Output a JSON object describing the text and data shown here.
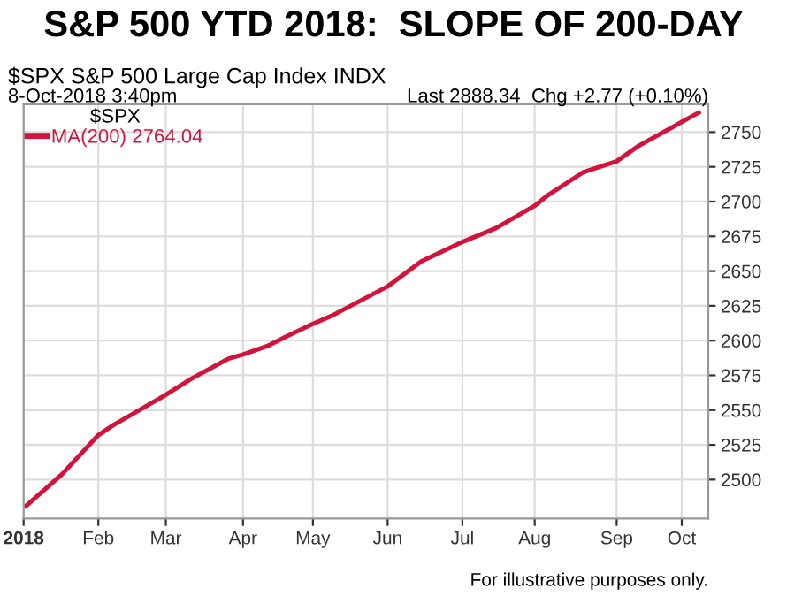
{
  "chart_data": {
    "type": "line",
    "title": "S&P 500 YTD 2018:  SLOPE OF 200-DAY",
    "subtitle": "$SPX S&P 500 Large Cap Index INDX",
    "annotations": [
      "8-Oct-2018 3:40pm",
      "Last 2888.34  Chg +2.77 (+0.10%)",
      "For illustrative purposes only."
    ],
    "legend_title": "$SPX",
    "x": [
      "2018-01-02",
      "2018-01-17",
      "2018-02-01",
      "2018-02-07",
      "2018-02-20",
      "2018-03-01",
      "2018-03-12",
      "2018-03-27",
      "2018-04-02",
      "2018-04-12",
      "2018-04-20",
      "2018-05-01",
      "2018-05-09",
      "2018-06-01",
      "2018-06-15",
      "2018-07-02",
      "2018-07-16",
      "2018-08-01",
      "2018-08-06",
      "2018-08-21",
      "2018-09-04",
      "2018-09-13",
      "2018-10-08"
    ],
    "series": [
      {
        "name": "MA(200) 2764.04",
        "color": "#d2143c",
        "values": [
          2481,
          2504,
          2532,
          2539,
          2552,
          2561,
          2573,
          2587,
          2590,
          2596,
          2603,
          2612,
          2618,
          2639,
          2657,
          2671,
          2681,
          2697,
          2704,
          2721,
          2729,
          2740,
          2764
        ]
      }
    ],
    "xlim": [
      "2018-01-01",
      "2018-10-12"
    ],
    "xticks": [
      {
        "value": "2018-01-01",
        "label": "2018"
      },
      {
        "value": "2018-02-01",
        "label": "Feb"
      },
      {
        "value": "2018-03-01",
        "label": "Mar"
      },
      {
        "value": "2018-04-02",
        "label": "Apr"
      },
      {
        "value": "2018-05-01",
        "label": "May"
      },
      {
        "value": "2018-06-01",
        "label": "Jun"
      },
      {
        "value": "2018-07-02",
        "label": "Jul"
      },
      {
        "value": "2018-08-01",
        "label": "Aug"
      },
      {
        "value": "2018-09-04",
        "label": "Sep"
      },
      {
        "value": "2018-10-01",
        "label": "Oct"
      }
    ],
    "ylim": [
      2472,
      2770
    ],
    "yticks": [
      2500,
      2525,
      2550,
      2575,
      2600,
      2625,
      2650,
      2675,
      2700,
      2725,
      2750
    ],
    "grid": true,
    "legend": "top left",
    "marker": "none",
    "line_style": "solid"
  }
}
